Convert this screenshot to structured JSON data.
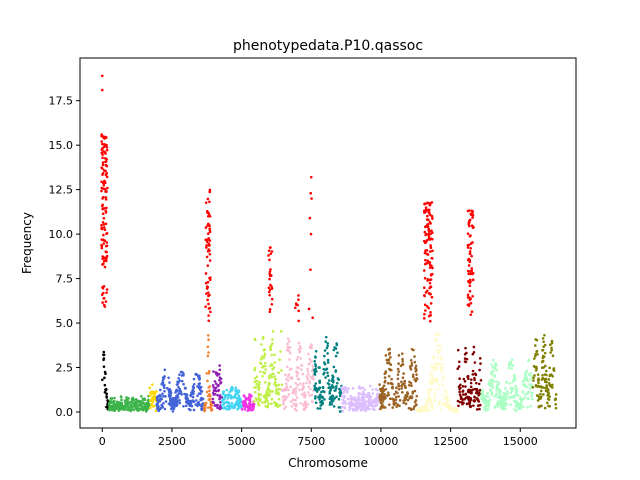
{
  "chart_data": {
    "type": "scatter",
    "title": "phenotypedata.P10.qassoc",
    "xlabel": "Chromosome",
    "ylabel": "Frequency",
    "xlim": [
      -800,
      17000
    ],
    "ylim": [
      -0.9,
      19.9
    ],
    "xticks": [
      0,
      2500,
      5000,
      7500,
      10000,
      12500,
      15000
    ],
    "xtick_labels": [
      "0",
      "2500",
      "5000",
      "7500",
      "10000",
      "12500",
      "15000"
    ],
    "yticks": [
      0.0,
      2.5,
      5.0,
      7.5,
      10.0,
      12.5,
      15.0,
      17.5
    ],
    "ytick_labels": [
      "0.0",
      "2.5",
      "5.0",
      "7.5",
      "10.0",
      "12.5",
      "15.0",
      "17.5"
    ],
    "grid": false,
    "highlight_threshold": 5.0,
    "highlight_color": "#ff0000",
    "segments": [
      {
        "x0": 0,
        "x1": 240,
        "color": "#000000",
        "base": 0.3,
        "amp": 4.8,
        "shape": "decay"
      },
      {
        "x0": 240,
        "x1": 1700,
        "color": "#3cb44b",
        "base": 0.15,
        "amp": 0.9,
        "shape": "noise"
      },
      {
        "x0": 1700,
        "x1": 1950,
        "color": "#ffd700",
        "base": 0.3,
        "amp": 1.8,
        "shape": "noise"
      },
      {
        "x0": 1950,
        "x1": 3650,
        "color": "#4363d8",
        "base": 0.3,
        "amp": 2.4,
        "shape": "bumps"
      },
      {
        "x0": 3650,
        "x1": 3950,
        "color": "#f58231",
        "base": 0.5,
        "amp": 4.6,
        "shape": "peak"
      },
      {
        "x0": 3950,
        "x1": 4300,
        "color": "#911eb4",
        "base": 0.2,
        "amp": 2.8,
        "shape": "noise"
      },
      {
        "x0": 4300,
        "x1": 5000,
        "color": "#42d4f4",
        "base": 0.2,
        "amp": 1.4,
        "shape": "noise"
      },
      {
        "x0": 5000,
        "x1": 5450,
        "color": "#f032e6",
        "base": 0.1,
        "amp": 1.0,
        "shape": "noise"
      },
      {
        "x0": 5450,
        "x1": 6450,
        "color": "#bfef45",
        "base": 0.5,
        "amp": 4.6,
        "shape": "bumps"
      },
      {
        "x0": 6450,
        "x1": 7600,
        "color": "#fabed4",
        "base": 0.2,
        "amp": 4.2,
        "shape": "bumps"
      },
      {
        "x0": 7600,
        "x1": 8600,
        "color": "#008080",
        "base": 0.3,
        "amp": 4.4,
        "shape": "bumps"
      },
      {
        "x0": 8600,
        "x1": 9950,
        "color": "#dcbeff",
        "base": 0.2,
        "amp": 1.5,
        "shape": "noise"
      },
      {
        "x0": 9950,
        "x1": 11300,
        "color": "#9a6324",
        "base": 0.3,
        "amp": 3.8,
        "shape": "bumps"
      },
      {
        "x0": 11300,
        "x1": 12750,
        "color": "#fffac8",
        "base": 0.2,
        "amp": 4.8,
        "shape": "peak"
      },
      {
        "x0": 12750,
        "x1": 13600,
        "color": "#800000",
        "base": 0.2,
        "amp": 3.8,
        "shape": "bumps"
      },
      {
        "x0": 13600,
        "x1": 15450,
        "color": "#aaffc3",
        "base": 0.2,
        "amp": 3.0,
        "shape": "bumps"
      },
      {
        "x0": 15450,
        "x1": 16300,
        "color": "#808000",
        "base": 0.3,
        "amp": 4.5,
        "shape": "bumps"
      }
    ],
    "signal_clusters": [
      {
        "x0": -30,
        "x1": 180,
        "ymin": 5.0,
        "ymax": 15.6,
        "n": 120
      },
      {
        "x0": 3700,
        "x1": 3880,
        "ymin": 5.0,
        "ymax": 12.5,
        "n": 60
      },
      {
        "x0": 5950,
        "x1": 6100,
        "ymin": 5.0,
        "ymax": 9.3,
        "n": 25
      },
      {
        "x0": 6900,
        "x1": 7050,
        "ymin": 5.0,
        "ymax": 6.7,
        "n": 8
      },
      {
        "x0": 11550,
        "x1": 11850,
        "ymin": 5.0,
        "ymax": 11.8,
        "n": 110
      },
      {
        "x0": 13120,
        "x1": 13320,
        "ymin": 5.0,
        "ymax": 11.4,
        "n": 70
      }
    ],
    "signal_points": [
      {
        "x": 0,
        "y": 18.9
      },
      {
        "x": 0,
        "y": 18.1
      },
      {
        "x": 7500,
        "y": 13.2
      },
      {
        "x": 7480,
        "y": 12.3
      },
      {
        "x": 7510,
        "y": 12.0
      },
      {
        "x": 7450,
        "y": 10.9
      },
      {
        "x": 7490,
        "y": 10.0
      },
      {
        "x": 7470,
        "y": 8.0
      },
      {
        "x": 7420,
        "y": 5.8
      },
      {
        "x": 7550,
        "y": 5.3
      }
    ]
  }
}
